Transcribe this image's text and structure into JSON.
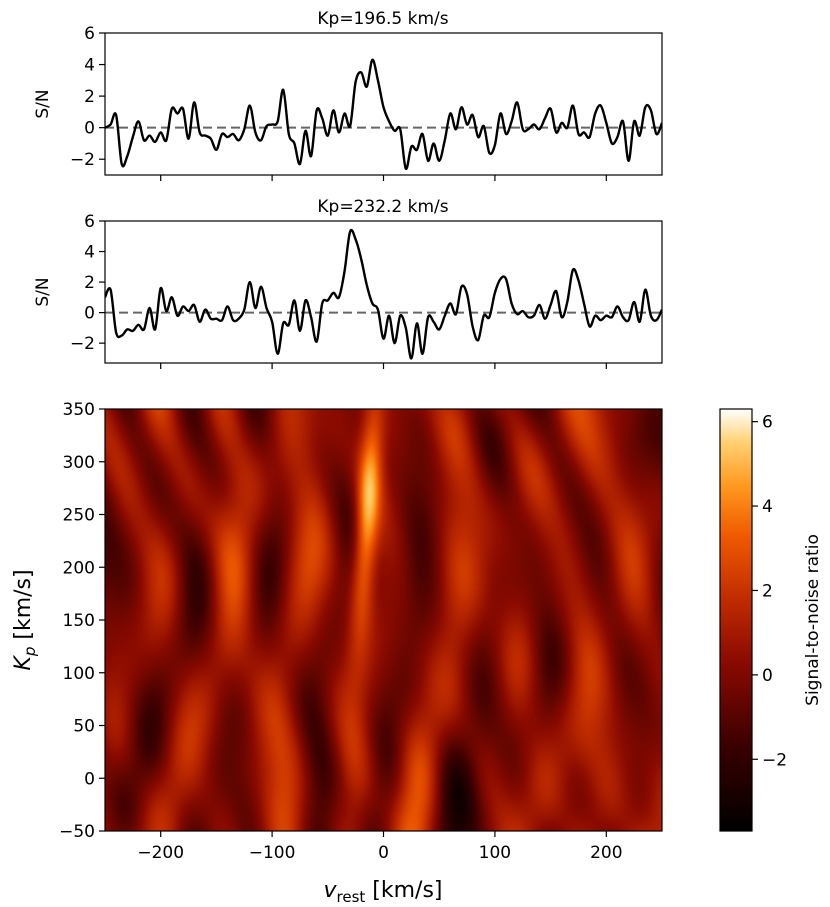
{
  "chart_data": [
    {
      "type": "line",
      "title": "Kp=196.5 km/s",
      "ylabel": "S/N",
      "xlim": [
        -250,
        250
      ],
      "ylim": [
        -3,
        6
      ],
      "yticks": [
        -2,
        0,
        2,
        4,
        6
      ],
      "xticks": [
        -200,
        -100,
        0,
        100,
        200
      ],
      "reference_line": {
        "y": 0,
        "style": "dashed",
        "color": "#666666"
      },
      "line_color": "#000000",
      "x": [
        -250,
        -245,
        -240,
        -235,
        -230,
        -225,
        -220,
        -215,
        -210,
        -205,
        -200,
        -195,
        -190,
        -185,
        -180,
        -175,
        -170,
        -165,
        -160,
        -155,
        -150,
        -145,
        -140,
        -135,
        -130,
        -125,
        -120,
        -115,
        -110,
        -105,
        -100,
        -95,
        -90,
        -85,
        -80,
        -75,
        -70,
        -65,
        -60,
        -55,
        -50,
        -45,
        -40,
        -35,
        -30,
        -25,
        -20,
        -15,
        -10,
        -5,
        0,
        5,
        10,
        15,
        20,
        25,
        30,
        35,
        40,
        45,
        50,
        55,
        60,
        65,
        70,
        75,
        80,
        85,
        90,
        95,
        100,
        105,
        110,
        115,
        120,
        125,
        130,
        135,
        140,
        145,
        150,
        155,
        160,
        165,
        170,
        175,
        180,
        185,
        190,
        195,
        200,
        205,
        210,
        215,
        220,
        225,
        230,
        235,
        240,
        245,
        250
      ],
      "y": [
        0.0,
        0.2,
        0.8,
        -2.3,
        -1.8,
        -0.6,
        0.4,
        -0.8,
        -0.5,
        -0.9,
        -0.3,
        -0.8,
        1.2,
        0.9,
        1.2,
        -0.7,
        1.6,
        -0.3,
        -0.5,
        -0.7,
        -1.4,
        -0.4,
        -0.6,
        -0.4,
        -0.8,
        -0.1,
        1.4,
        -0.3,
        -0.8,
        0.1,
        0.2,
        0.4,
        2.4,
        -0.4,
        -1.0,
        -2.3,
        -0.2,
        -1.8,
        1.1,
        0.6,
        -0.5,
        1.1,
        -0.3,
        0.9,
        0.1,
        2.9,
        3.5,
        2.6,
        4.3,
        3.0,
        1.3,
        0.4,
        -0.2,
        -0.1,
        -2.6,
        -1.2,
        -1.4,
        -0.4,
        -2.1,
        -1.0,
        -2.1,
        -0.8,
        0.9,
        -0.1,
        1.3,
        0.2,
        0.8,
        -0.6,
        0.1,
        -1.6,
        -1.1,
        0.9,
        -0.4,
        0.4,
        1.6,
        -0.1,
        -0.1,
        0.2,
        -0.1,
        0.6,
        1.2,
        -0.3,
        0.3,
        0.0,
        1.4,
        -0.4,
        -0.3,
        -0.6,
        0.9,
        1.4,
        0.3,
        -1.0,
        -0.6,
        0.4,
        -2.1,
        0.4,
        -0.5,
        1.3,
        1.1,
        -0.4,
        0.3
      ]
    },
    {
      "type": "line",
      "title": "Kp=232.2 km/s",
      "ylabel": "S/N",
      "xlim": [
        -250,
        250
      ],
      "ylim": [
        -3.3,
        6
      ],
      "yticks": [
        -2,
        0,
        2,
        4,
        6
      ],
      "xticks": [
        -200,
        -100,
        0,
        100,
        200
      ],
      "reference_line": {
        "y": 0,
        "style": "dashed",
        "color": "#666666"
      },
      "line_color": "#000000",
      "x": [
        -250,
        -245,
        -240,
        -235,
        -230,
        -225,
        -220,
        -215,
        -210,
        -205,
        -200,
        -195,
        -190,
        -185,
        -180,
        -175,
        -170,
        -165,
        -160,
        -155,
        -150,
        -145,
        -140,
        -135,
        -130,
        -125,
        -120,
        -115,
        -110,
        -105,
        -100,
        -95,
        -90,
        -85,
        -80,
        -75,
        -70,
        -65,
        -60,
        -55,
        -50,
        -45,
        -40,
        -35,
        -30,
        -25,
        -20,
        -15,
        -10,
        -5,
        0,
        5,
        10,
        15,
        20,
        25,
        30,
        35,
        40,
        45,
        50,
        55,
        60,
        65,
        70,
        75,
        80,
        85,
        90,
        95,
        100,
        105,
        110,
        115,
        120,
        125,
        130,
        135,
        140,
        145,
        150,
        155,
        160,
        165,
        170,
        175,
        180,
        185,
        190,
        195,
        200,
        205,
        210,
        215,
        220,
        225,
        230,
        235,
        240,
        245,
        250
      ],
      "y": [
        1.0,
        1.5,
        -1.3,
        -1.5,
        -1.1,
        -1.2,
        -0.8,
        -1.1,
        0.3,
        -1.1,
        1.6,
        0.1,
        1.0,
        -0.2,
        0.4,
        0.1,
        0.5,
        -0.6,
        0.2,
        -0.4,
        -0.4,
        -0.5,
        0.4,
        -0.5,
        -0.4,
        0.2,
        2.0,
        0.3,
        1.7,
        0.3,
        -0.6,
        -2.7,
        -0.7,
        -0.8,
        0.8,
        -1.2,
        0.8,
        -0.3,
        -1.9,
        0.6,
        0.8,
        1.3,
        1.0,
        2.7,
        5.3,
        4.8,
        3.5,
        1.8,
        0.6,
        0.2,
        -1.7,
        -0.2,
        -2.0,
        -0.2,
        -1.0,
        -3.0,
        -0.7,
        -2.7,
        -0.3,
        -0.6,
        -1.1,
        -0.2,
        0.6,
        -0.1,
        1.7,
        1.2,
        -0.9,
        -1.8,
        -0.2,
        -0.3,
        1.3,
        2.2,
        2.2,
        0.6,
        -0.1,
        0.1,
        -0.3,
        -0.2,
        0.5,
        -0.4,
        0.5,
        1.4,
        -0.3,
        0.7,
        2.8,
        2.1,
        0.6,
        -0.9,
        -0.2,
        -0.5,
        -0.2,
        -0.3,
        0.4,
        -0.3,
        -0.5,
        0.7,
        -0.6,
        1.5,
        -0.2,
        -0.5,
        0.2
      ]
    },
    {
      "type": "heatmap",
      "xlabel_main": "v",
      "xlabel_sub": "rest",
      "xlabel_unit": " [km/s]",
      "ylabel_main": "K",
      "ylabel_sub": "p",
      "ylabel_unit": " [km/s]",
      "xlim": [
        -250,
        250
      ],
      "ylim": [
        -50,
        350
      ],
      "xticks": [
        -200,
        -100,
        0,
        100,
        200
      ],
      "yticks": [
        -50,
        0,
        50,
        100,
        150,
        200,
        250,
        300,
        350
      ],
      "colormap": "gist_heat",
      "peak": {
        "x": -15,
        "y": 250,
        "value": 6.2
      },
      "colorbar": {
        "label": "Signal-to-noise ratio",
        "range": [
          -3.7,
          6.3
        ],
        "ticks": [
          -2,
          0,
          2,
          4,
          6
        ]
      }
    }
  ]
}
